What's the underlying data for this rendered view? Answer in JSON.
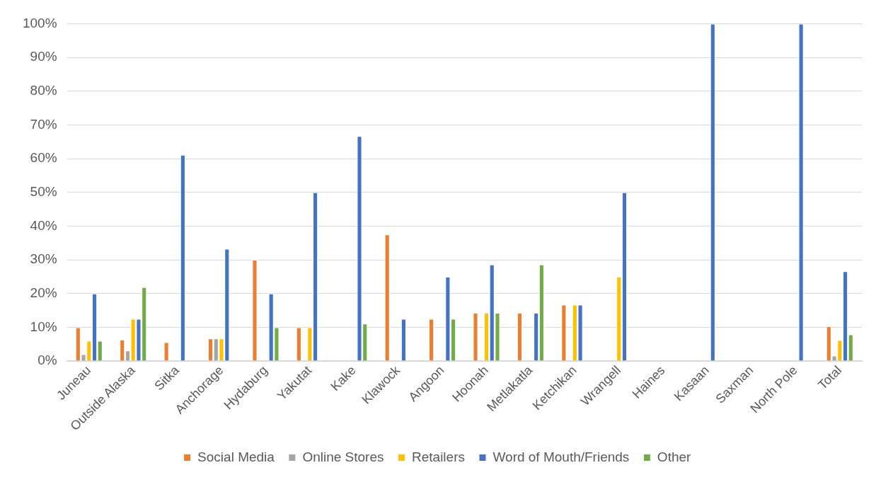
{
  "chart_data": {
    "type": "bar",
    "categories": [
      "Juneau",
      "Outside Alaska",
      "Sitka",
      "Anchorage",
      "Hydaburg",
      "Yakutat",
      "Kake",
      "Klawock",
      "Angoon",
      "Hoonah",
      "Metlakatla",
      "Ketchikan",
      "Wrangell",
      "Haines",
      "Kasaan",
      "Saxman",
      "North Pole",
      "Total"
    ],
    "series": [
      {
        "name": "Social Media",
        "color": "#ed7d31",
        "values": [
          10,
          6.3,
          5.6,
          6.7,
          30,
          10,
          0,
          37.5,
          12.5,
          14.3,
          14.3,
          16.7,
          0,
          0,
          0,
          0,
          0,
          10.3
        ]
      },
      {
        "name": "Online Stores",
        "color": "#a5a5a5",
        "values": [
          2,
          3.1,
          0,
          6.7,
          0,
          0,
          0,
          0,
          0,
          0,
          0,
          0,
          0,
          0,
          0,
          0,
          0,
          1.6
        ]
      },
      {
        "name": "Retailers",
        "color": "#ffc000",
        "values": [
          6,
          12.5,
          0,
          6.7,
          0,
          10,
          0,
          0,
          0,
          14.3,
          0,
          16.7,
          25,
          0,
          0,
          0,
          0,
          6.2
        ]
      },
      {
        "name": "Word of Mouth/Friends",
        "color": "#4472c4",
        "values": [
          20,
          12.5,
          61.1,
          33.3,
          20,
          50,
          66.7,
          12.5,
          25,
          28.6,
          14.3,
          16.7,
          50,
          0,
          100,
          0,
          100,
          26.6
        ]
      },
      {
        "name": "Other",
        "color": "#70ad47",
        "values": [
          6,
          21.9,
          0,
          0,
          10,
          0,
          11.1,
          0,
          12.5,
          14.3,
          28.6,
          0,
          0,
          0,
          0,
          0,
          0,
          7.9
        ]
      }
    ],
    "ylim": [
      0,
      100
    ],
    "yticks": [
      {
        "value": 0,
        "label": "0%"
      },
      {
        "value": 10,
        "label": "10%"
      },
      {
        "value": 20,
        "label": "20%"
      },
      {
        "value": 30,
        "label": "30%"
      },
      {
        "value": 40,
        "label": "40%"
      },
      {
        "value": 50,
        "label": "50%"
      },
      {
        "value": 60,
        "label": "60%"
      },
      {
        "value": 70,
        "label": "70%"
      },
      {
        "value": 80,
        "label": "80%"
      },
      {
        "value": 90,
        "label": "90%"
      },
      {
        "value": 100,
        "label": "100%"
      }
    ],
    "grid": "y",
    "legend": "bottom"
  }
}
